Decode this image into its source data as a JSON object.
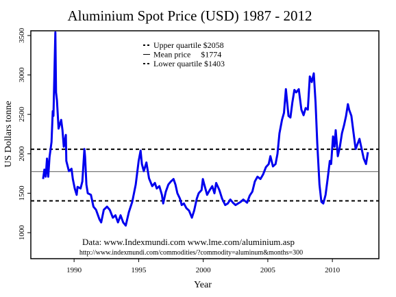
{
  "chart_data": {
    "type": "line",
    "title": "Aluminium Spot Price (USD) 1987 - 2012",
    "x_label": "Year",
    "y_label": "US Dollars tonne",
    "xlim": [
      1986.65,
      2013.6
    ],
    "ylim": [
      670,
      3560
    ],
    "xticks": [
      1990,
      1995,
      2000,
      2005,
      2010
    ],
    "yticks": [
      1000,
      1500,
      2000,
      2500,
      3000,
      3500
    ],
    "x": [
      1987.6,
      1987.7,
      1987.8,
      1987.9,
      1988.0,
      1988.1,
      1988.25,
      1988.35,
      1988.4,
      1988.55,
      1988.6,
      1988.67,
      1988.8,
      1989.0,
      1989.1,
      1989.2,
      1989.36,
      1989.4,
      1989.6,
      1989.8,
      1989.9,
      1990.05,
      1990.2,
      1990.27,
      1990.5,
      1990.64,
      1990.8,
      1990.85,
      1990.95,
      1991.06,
      1991.3,
      1991.5,
      1991.7,
      1991.96,
      1992.1,
      1992.3,
      1992.55,
      1992.76,
      1993.0,
      1993.2,
      1993.4,
      1993.6,
      1993.8,
      1994.0,
      1994.24,
      1994.5,
      1994.77,
      1995.0,
      1995.15,
      1995.25,
      1995.4,
      1995.6,
      1995.8,
      1996.05,
      1996.26,
      1996.4,
      1996.6,
      1996.8,
      1996.9,
      1997.1,
      1997.3,
      1997.5,
      1997.7,
      1997.85,
      1998.0,
      1998.2,
      1998.33,
      1998.5,
      1998.7,
      1998.9,
      1999.12,
      1999.3,
      1999.5,
      1999.65,
      1999.87,
      1999.97,
      2000.08,
      2000.3,
      2000.5,
      2000.7,
      2000.87,
      2001.0,
      2001.25,
      2001.46,
      2001.7,
      2001.9,
      2002.1,
      2002.3,
      2002.5,
      2002.7,
      2002.9,
      2003.1,
      2003.4,
      2003.6,
      2003.8,
      2004.0,
      2004.2,
      2004.43,
      2004.64,
      2004.85,
      2005.07,
      2005.2,
      2005.4,
      2005.6,
      2005.75,
      2005.9,
      2006.1,
      2006.25,
      2006.4,
      2006.6,
      2006.75,
      2006.9,
      2007.06,
      2007.2,
      2007.4,
      2007.6,
      2007.77,
      2007.93,
      2008.1,
      2008.25,
      2008.4,
      2008.56,
      2008.7,
      2008.83,
      2009.0,
      2009.15,
      2009.3,
      2009.47,
      2009.63,
      2009.8,
      2009.9,
      2010.05,
      2010.16,
      2010.26,
      2010.42,
      2010.58,
      2010.74,
      2010.9,
      2011.06,
      2011.2,
      2011.3,
      2011.47,
      2011.64,
      2011.8,
      2011.96,
      2012.1,
      2012.27,
      2012.43,
      2012.6,
      2012.75
    ],
    "series": [
      {
        "name": "Aluminium spot price",
        "color": "#0000ee",
        "values": [
          1680,
          1800,
          1710,
          1940,
          1710,
          1960,
          2150,
          2540,
          2480,
          3540,
          2780,
          2680,
          2320,
          2430,
          2300,
          2090,
          2240,
          1910,
          1780,
          1810,
          1680,
          1560,
          1480,
          1580,
          1560,
          1650,
          2060,
          1960,
          1610,
          1500,
          1480,
          1330,
          1290,
          1170,
          1130,
          1290,
          1330,
          1290,
          1190,
          1220,
          1130,
          1220,
          1130,
          1090,
          1260,
          1390,
          1610,
          1910,
          2040,
          1870,
          1780,
          1890,
          1690,
          1590,
          1630,
          1560,
          1590,
          1480,
          1370,
          1520,
          1610,
          1650,
          1680,
          1610,
          1500,
          1430,
          1350,
          1370,
          1310,
          1280,
          1190,
          1280,
          1430,
          1500,
          1540,
          1680,
          1610,
          1480,
          1540,
          1590,
          1500,
          1630,
          1540,
          1430,
          1350,
          1370,
          1420,
          1380,
          1350,
          1370,
          1390,
          1420,
          1380,
          1470,
          1520,
          1650,
          1710,
          1680,
          1740,
          1830,
          1870,
          1970,
          1840,
          1870,
          2000,
          2260,
          2430,
          2520,
          2820,
          2480,
          2460,
          2650,
          2810,
          2780,
          2820,
          2560,
          2490,
          2580,
          2560,
          2980,
          2910,
          3020,
          2650,
          2130,
          1610,
          1390,
          1370,
          1480,
          1680,
          1910,
          1870,
          2220,
          2090,
          2300,
          1970,
          2090,
          2260,
          2360,
          2480,
          2630,
          2560,
          2480,
          2260,
          2060,
          2130,
          2190,
          2060,
          1940,
          1870,
          2020
        ]
      }
    ],
    "reference_lines": [
      {
        "label": "Upper quartile $2058",
        "value": 2058,
        "style": "dashed"
      },
      {
        "label": "Mean price     $1774",
        "value": 1774,
        "style": "solid"
      },
      {
        "label": "Lower quartile $1403",
        "value": 1403,
        "style": "dashed"
      }
    ],
    "annotations": [
      "Data: www.Indexmundi.com www.lme.com/aluminium.asp",
      "http://www.indexmundi.com/commodities/?commodity=aluminum&months=300"
    ]
  }
}
